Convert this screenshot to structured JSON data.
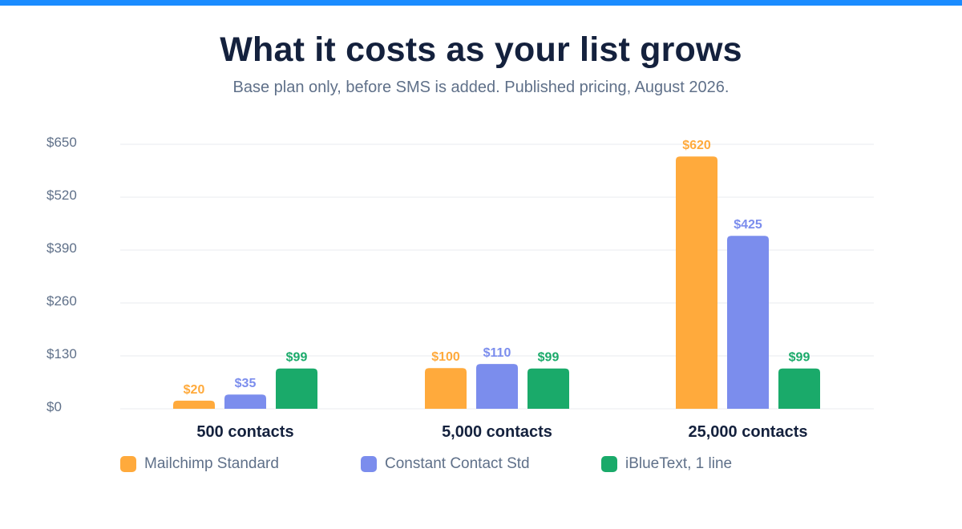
{
  "header": {
    "title": "What it costs as your list grows",
    "subtitle": "Base plan only, before SMS is added. Published pricing, August 2026."
  },
  "colors": {
    "accent_bar": "#1a8cff",
    "title": "#14213d",
    "muted_text": "#5f7089",
    "gridline": "#e8ebef"
  },
  "chart_data": {
    "type": "bar",
    "title": "What it costs as your list grows",
    "subtitle": "Base plan only, before SMS is added. Published pricing, August 2026.",
    "categories": [
      "500 contacts",
      "5,000 contacts",
      "25,000 contacts"
    ],
    "series": [
      {
        "name": "Mailchimp Standard",
        "color": "#ffaa3c",
        "values": [
          20,
          100,
          620
        ],
        "labels": [
          "$20",
          "$100",
          "$620"
        ]
      },
      {
        "name": "Constant Contact Std",
        "color": "#7b8ded",
        "values": [
          35,
          110,
          425
        ],
        "labels": [
          "$35",
          "$110",
          "$425"
        ]
      },
      {
        "name": "iBlueText, 1 line",
        "color": "#1aaa6a",
        "values": [
          99,
          99,
          99
        ],
        "labels": [
          "$99",
          "$99",
          "$99"
        ]
      }
    ],
    "yticks": [
      0,
      130,
      260,
      390,
      520,
      650
    ],
    "ytick_labels": [
      "$0",
      "$130",
      "$260",
      "$390",
      "$520",
      "$650"
    ],
    "ylim": [
      0,
      650
    ],
    "grid": true,
    "legend": "bottom-left"
  }
}
